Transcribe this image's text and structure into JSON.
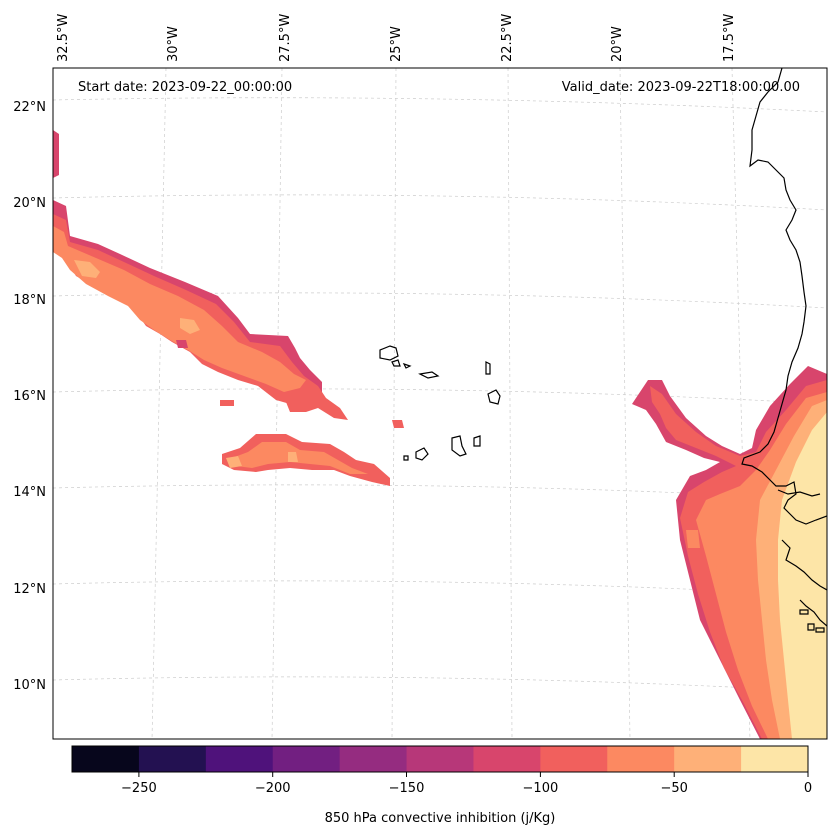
{
  "map": {
    "start_date": "Start date: 2023-09-22_00:00:00",
    "valid_date": "Valid_date: 2023-09-22T18:00:00.00",
    "lon_labels": [
      "32.5°W",
      "30°W",
      "27.5°W",
      "25°W",
      "22.5°W",
      "20°W",
      "17.5°W"
    ],
    "lat_labels": [
      "22°N",
      "20°N",
      "18°N",
      "16°N",
      "14°N",
      "12°N",
      "10°N"
    ],
    "gridlines": true,
    "coastline_color": "#000000"
  },
  "colorbar": {
    "label": "850 hPa convective inhibition (j/Kg)",
    "tick_labels": [
      "−250",
      "−200",
      "−150",
      "−100",
      "−50",
      "0"
    ],
    "colors": [
      "#07061c",
      "#231151",
      "#4f127b",
      "#721f81",
      "#952c80",
      "#b73779",
      "#d8456c",
      "#f1605d",
      "#fc8961",
      "#feb078",
      "#fde5a7"
    ]
  },
  "chart_data": {
    "type": "contourf",
    "variable": "850 hPa convective inhibition",
    "units": "j/Kg",
    "levels": [
      -275,
      -250,
      -225,
      -200,
      -175,
      -150,
      -125,
      -100,
      -75,
      -50,
      -25,
      0
    ],
    "lon_range": [
      -33.0,
      -15.0
    ],
    "lat_range": [
      9.0,
      22.8
    ]
  }
}
